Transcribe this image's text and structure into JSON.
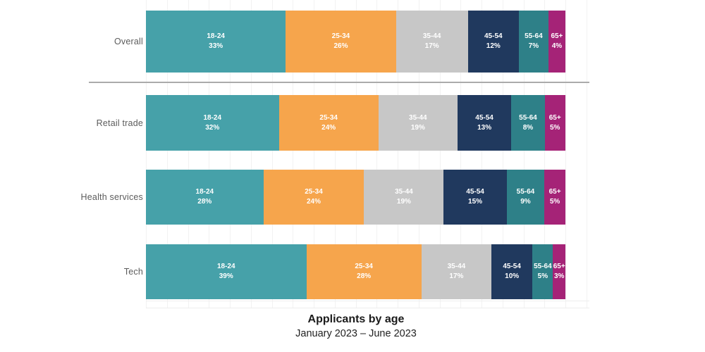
{
  "title": "Applicants by age",
  "subtitle": "January 2023 – June 2023",
  "chart_data": {
    "type": "bar",
    "orientation": "horizontal",
    "stacked_percent": true,
    "age_groups": [
      "18-24",
      "25-34",
      "35-44",
      "45-54",
      "55-64",
      "65+"
    ],
    "segment_colors": [
      "#46A1A9",
      "#F6A54C",
      "#C7C7C7",
      "#20395E",
      "#2E8088",
      "#A52377"
    ],
    "value_suffix": "%",
    "rows": [
      {
        "label": "Overall",
        "values": [
          33,
          26,
          17,
          12,
          7,
          4
        ]
      },
      {
        "label": "Retail trade",
        "values": [
          32,
          24,
          19,
          13,
          8,
          5
        ]
      },
      {
        "label": "Health services",
        "values": [
          28,
          24,
          19,
          15,
          9,
          5
        ]
      },
      {
        "label": "Tech",
        "values": [
          39,
          28,
          17,
          10,
          5,
          3
        ]
      }
    ],
    "gridlines": {
      "step_percent": 5,
      "color": "#f2f2f2",
      "on": true
    },
    "legend": "none",
    "xlim": [
      0,
      100
    ]
  },
  "separator_color": "#ababab",
  "label_color": "#5c5c5c"
}
